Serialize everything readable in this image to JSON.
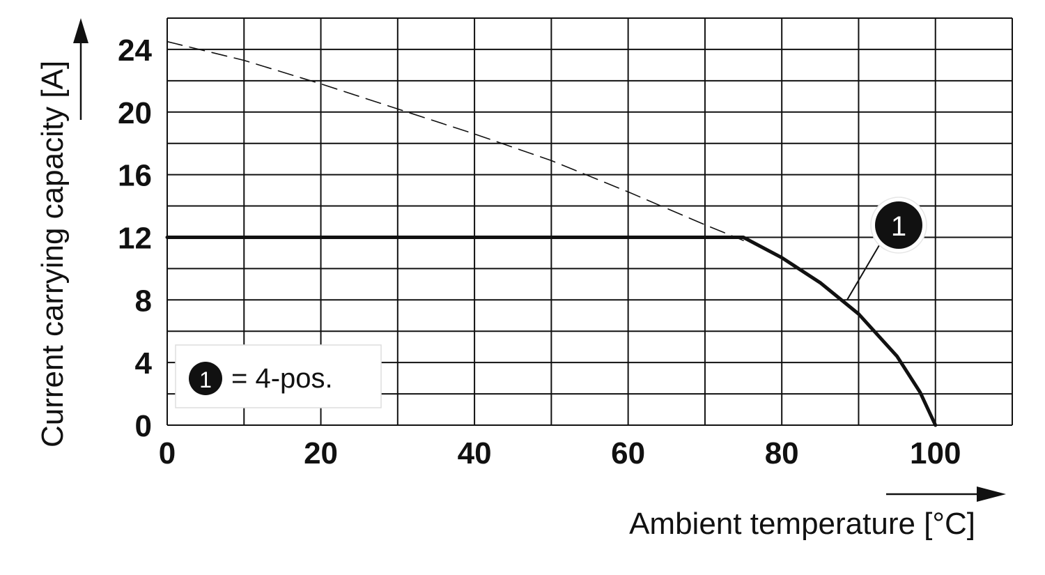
{
  "chart_data": {
    "type": "line",
    "title": "",
    "xlabel": "Ambient temperature [°C]",
    "ylabel": "Current carrying capacity [A]",
    "xlim": [
      0,
      110
    ],
    "ylim": [
      0,
      26
    ],
    "x_ticks": [
      0,
      20,
      40,
      60,
      80,
      100
    ],
    "y_ticks": [
      0,
      4,
      8,
      12,
      16,
      20,
      24
    ],
    "grid": true,
    "grid_step_x": 10,
    "grid_step_y": 2,
    "series": [
      {
        "id": "base",
        "style": "dashed",
        "points": [
          [
            0,
            24.5
          ],
          [
            10,
            23.3
          ],
          [
            20,
            21.8
          ],
          [
            30,
            20.2
          ],
          [
            40,
            18.6
          ],
          [
            50,
            16.9
          ],
          [
            60,
            14.9
          ],
          [
            70,
            12.8
          ],
          [
            75,
            11.8
          ]
        ]
      },
      {
        "id": "derated-4-pos",
        "marker": "1",
        "style": "solid",
        "points": [
          [
            0,
            12
          ],
          [
            75,
            12
          ],
          [
            80,
            10.7
          ],
          [
            85,
            9.1
          ],
          [
            90,
            7.1
          ],
          [
            95,
            4.4
          ],
          [
            98,
            2.1
          ],
          [
            100,
            0
          ]
        ]
      }
    ],
    "annotations": [
      {
        "marker": "1",
        "target": [
          88.5,
          8
        ]
      }
    ],
    "legend": {
      "position": "bottom-left",
      "entries": [
        {
          "marker": "1",
          "label": "= 4-pos."
        }
      ]
    }
  }
}
